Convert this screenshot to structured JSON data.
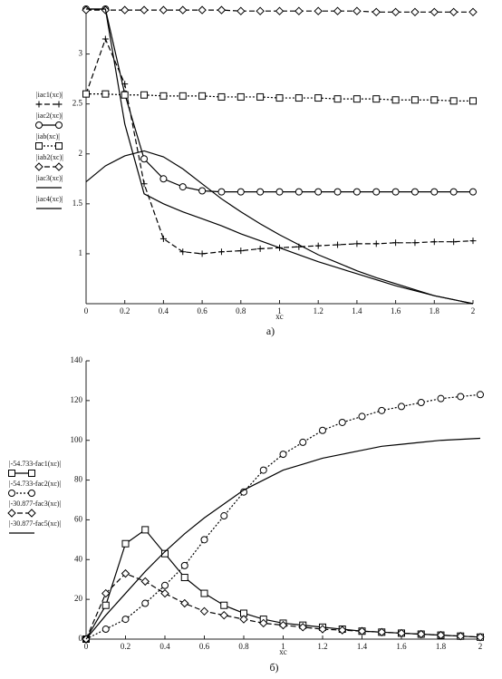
{
  "chart_data": [
    {
      "type": "line",
      "subtitle": "а)",
      "xlabel": "xc",
      "x": [
        0,
        0.1,
        0.2,
        0.3,
        0.4,
        0.5,
        0.6,
        0.7,
        0.8,
        0.9,
        1,
        1.1,
        1.2,
        1.3,
        1.4,
        1.5,
        1.6,
        1.7,
        1.8,
        1.9,
        2
      ],
      "xlim": [
        0,
        2
      ],
      "xticks": [
        0,
        0.2,
        0.4,
        0.6,
        0.8,
        1,
        1.2,
        1.4,
        1.6,
        1.8,
        2
      ],
      "ylim": [
        0.5,
        3.45
      ],
      "yticks": [
        1,
        1.5,
        2,
        2.5,
        3
      ],
      "series": [
        {
          "name": "|iac1(xc)|",
          "color": "#000",
          "dash": "dashed",
          "marker": "plus",
          "values": [
            2.6,
            3.15,
            2.7,
            1.7,
            1.15,
            1.02,
            1.0,
            1.02,
            1.03,
            1.05,
            1.06,
            1.07,
            1.08,
            1.09,
            1.1,
            1.1,
            1.11,
            1.11,
            1.12,
            1.12,
            1.13
          ]
        },
        {
          "name": "|iac2(xc)|",
          "color": "#000",
          "dash": "solid",
          "marker": "circle",
          "values": [
            3.45,
            3.45,
            2.6,
            1.95,
            1.75,
            1.67,
            1.63,
            1.62,
            1.62,
            1.62,
            1.62,
            1.62,
            1.62,
            1.62,
            1.62,
            1.62,
            1.62,
            1.62,
            1.62,
            1.62,
            1.62
          ]
        },
        {
          "name": "|iab(xc)|",
          "color": "#000",
          "dash": "dotted",
          "marker": "square",
          "values": [
            2.6,
            2.6,
            2.59,
            2.59,
            2.58,
            2.58,
            2.58,
            2.57,
            2.57,
            2.57,
            2.56,
            2.56,
            2.56,
            2.55,
            2.55,
            2.55,
            2.54,
            2.54,
            2.54,
            2.53,
            2.53
          ]
        },
        {
          "name": "|iab2(xc)|",
          "color": "#000",
          "dash": "dashed",
          "marker": "diamond",
          "values": [
            3.44,
            3.44,
            3.44,
            3.44,
            3.44,
            3.44,
            3.44,
            3.44,
            3.43,
            3.43,
            3.43,
            3.43,
            3.43,
            3.43,
            3.43,
            3.42,
            3.42,
            3.42,
            3.42,
            3.42,
            3.42
          ]
        },
        {
          "name": "|iac3(xc)|",
          "color": "#000",
          "dash": "solid",
          "marker": null,
          "values": [
            1.72,
            1.88,
            1.98,
            2.03,
            1.97,
            1.85,
            1.7,
            1.55,
            1.42,
            1.3,
            1.19,
            1.09,
            0.99,
            0.91,
            0.83,
            0.76,
            0.7,
            0.64,
            0.58,
            0.54,
            0.5
          ]
        },
        {
          "name": "|iac4(xc)|",
          "color": "#000",
          "dash": "solid",
          "marker": null,
          "values": [
            3.45,
            3.45,
            2.3,
            1.6,
            1.5,
            1.42,
            1.35,
            1.28,
            1.2,
            1.13,
            1.06,
            0.99,
            0.92,
            0.86,
            0.8,
            0.74,
            0.68,
            0.63,
            0.58,
            0.54,
            0.5
          ]
        }
      ]
    },
    {
      "type": "line",
      "subtitle": "б)",
      "xlabel": "xc",
      "x": [
        0,
        0.1,
        0.2,
        0.3,
        0.4,
        0.5,
        0.6,
        0.7,
        0.8,
        0.9,
        1,
        1.1,
        1.2,
        1.3,
        1.4,
        1.5,
        1.6,
        1.7,
        1.8,
        1.9,
        2
      ],
      "xlim": [
        0,
        2
      ],
      "xticks": [
        0,
        0.2,
        0.4,
        0.6,
        0.8,
        1,
        1.2,
        1.4,
        1.6,
        1.8,
        2
      ],
      "ylim": [
        0,
        140
      ],
      "yticks": [
        0,
        20,
        40,
        60,
        80,
        100,
        120,
        140
      ],
      "series": [
        {
          "name": "|-54.733-fac1(xc)|",
          "color": "#000",
          "dash": "solid",
          "marker": "square",
          "values": [
            0,
            17,
            48,
            55,
            43,
            31,
            23,
            17,
            13,
            10,
            8,
            7,
            6,
            5,
            4,
            3.5,
            3,
            2.5,
            2,
            1.5,
            1
          ]
        },
        {
          "name": "|-54.733-fac2(xc)|",
          "color": "#000",
          "dash": "dotted",
          "marker": "circle",
          "values": [
            0,
            5,
            10,
            18,
            27,
            37,
            50,
            62,
            74,
            85,
            93,
            99,
            105,
            109,
            112,
            115,
            117,
            119,
            121,
            122,
            123
          ]
        },
        {
          "name": "|-30.877-fac3(xc)|",
          "color": "#000",
          "dash": "dashed",
          "marker": "diamond",
          "values": [
            0,
            23,
            33,
            29,
            23,
            18,
            14,
            12,
            10,
            8,
            7,
            6,
            5,
            4.5,
            4,
            3.5,
            3,
            2.5,
            2,
            1.5,
            1
          ]
        },
        {
          "name": "|-30.877-fac5(xc)|",
          "color": "#000",
          "dash": "solid",
          "marker": null,
          "values": [
            0,
            12,
            23,
            34,
            44,
            53,
            61,
            68,
            75,
            80,
            85,
            88,
            91,
            93,
            95,
            97,
            98,
            99,
            100,
            100.5,
            101
          ]
        }
      ]
    }
  ]
}
